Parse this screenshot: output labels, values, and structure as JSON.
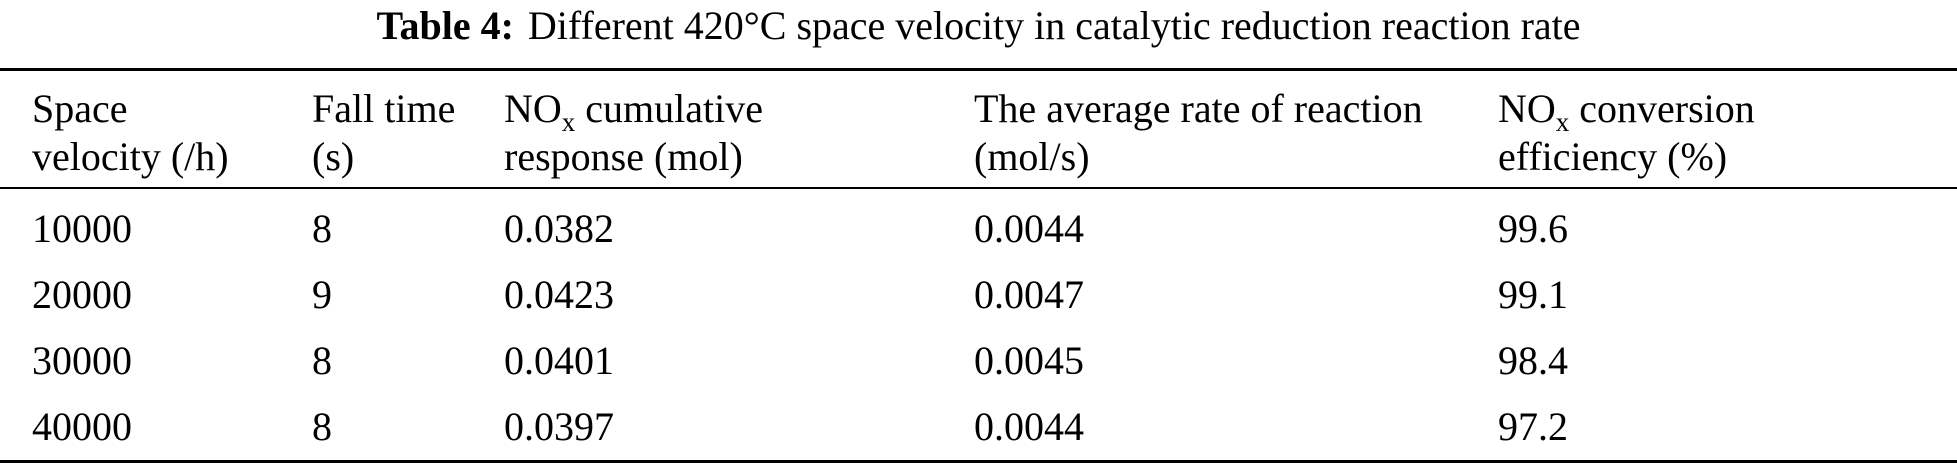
{
  "caption": {
    "label": "Table 4:",
    "text": "Different 420°C space velocity in catalytic reduction reaction rate"
  },
  "table": {
    "headers": [
      {
        "line1": "Space",
        "line2": "velocity (/h)"
      },
      {
        "line1": "Fall time",
        "line2": "(s)"
      },
      {
        "line1_pre": "NO",
        "line1_sub": "x",
        "line1_post": " cumulative",
        "line2": "response (mol)"
      },
      {
        "line1": "The average rate of reaction",
        "line2": "(mol/s)"
      },
      {
        "line1_pre": "NO",
        "line1_sub": "x",
        "line1_post": " conversion",
        "line2": "efficiency (%)"
      }
    ],
    "rows": [
      [
        "10000",
        "8",
        "0.0382",
        "0.0044",
        "99.6"
      ],
      [
        "20000",
        "9",
        "0.0423",
        "0.0047",
        "99.1"
      ],
      [
        "30000",
        "8",
        "0.0401",
        "0.0045",
        "98.4"
      ],
      [
        "40000",
        "8",
        "0.0397",
        "0.0044",
        "97.2"
      ]
    ]
  }
}
